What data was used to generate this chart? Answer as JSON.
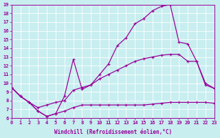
{
  "xlabel": "Windchill (Refroidissement éolien,°C)",
  "xlim": [
    0,
    23
  ],
  "ylim": [
    6,
    19
  ],
  "xticks": [
    0,
    1,
    2,
    3,
    4,
    5,
    6,
    7,
    8,
    9,
    10,
    11,
    12,
    13,
    14,
    15,
    16,
    17,
    18,
    19,
    20,
    21,
    22,
    23
  ],
  "yticks": [
    6,
    7,
    8,
    9,
    10,
    11,
    12,
    13,
    14,
    15,
    16,
    17,
    18,
    19
  ],
  "bg_color": "#c8eef0",
  "line_color": "#990099",
  "grid_color": "#ffffff",
  "line_top_x": [
    0,
    1,
    2,
    3,
    4,
    5,
    6,
    7,
    8,
    9,
    10,
    11,
    12,
    13,
    14,
    15,
    16,
    17,
    18,
    19,
    20,
    21,
    22,
    23
  ],
  "line_top_y": [
    9.5,
    8.5,
    7.8,
    6.8,
    6.2,
    6.5,
    8.5,
    12.7,
    9.3,
    9.8,
    11.0,
    12.2,
    14.3,
    15.2,
    16.8,
    17.4,
    18.3,
    18.8,
    19.0,
    14.7,
    14.5,
    12.5,
    9.8,
    9.4
  ],
  "line_mid_x": [
    0,
    1,
    2,
    3,
    4,
    5,
    6,
    7,
    8,
    9,
    10,
    11,
    12,
    13,
    14,
    15,
    16,
    17,
    18,
    19,
    20,
    21,
    22,
    23
  ],
  "line_mid_y": [
    9.5,
    8.5,
    7.8,
    7.2,
    7.5,
    7.8,
    8.0,
    9.2,
    9.5,
    9.8,
    10.5,
    11.0,
    11.5,
    12.0,
    12.5,
    12.8,
    13.0,
    13.2,
    13.3,
    13.3,
    12.5,
    12.5,
    10.0,
    9.4
  ],
  "line_bot_x": [
    0,
    1,
    2,
    3,
    4,
    5,
    6,
    7,
    8,
    9,
    10,
    11,
    12,
    13,
    14,
    15,
    16,
    17,
    18,
    19,
    20,
    21,
    22,
    23
  ],
  "line_bot_y": [
    9.5,
    8.5,
    7.8,
    6.8,
    6.2,
    6.5,
    6.8,
    7.2,
    7.5,
    7.5,
    7.5,
    7.5,
    7.5,
    7.5,
    7.5,
    7.5,
    7.6,
    7.7,
    7.8,
    7.8,
    7.8,
    7.8,
    7.8,
    7.7
  ]
}
